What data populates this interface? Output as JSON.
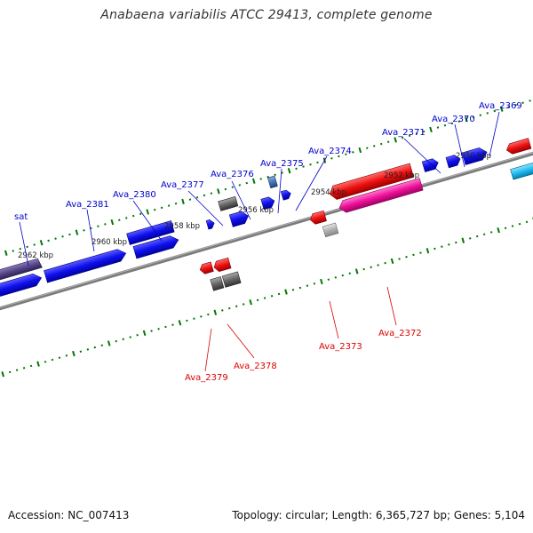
{
  "title": "Anabaena variabilis ATCC 29413, complete genome",
  "footer": {
    "accession": "Accession: NC_007413",
    "summary": "Topology: circular; Length: 6,365,727 bp; Genes: 5,104"
  },
  "scale_labels": [
    "2962 kbp",
    "2960 kbp",
    "2958 kbp",
    "2956 kbp",
    "2954 kbp",
    "2952 kbp",
    "2950 kbp"
  ],
  "gene_labels": {
    "forward": [
      "sat",
      "Ava_2381",
      "Ava_2380",
      "Ava_2377",
      "Ava_2376",
      "Ava_2375",
      "Ava_2374",
      "Ava_2371",
      "Ava_2370",
      "Ava_2369"
    ],
    "reverse": [
      "Ava_2379",
      "Ava_2378",
      "Ava_2373",
      "Ava_2372"
    ]
  },
  "colors": {
    "forward_label": "#0000cc",
    "reverse_label": "#dd0000",
    "backbone": "#808080",
    "tick": "#007700",
    "forward_gene": "#1010ee",
    "reverse_gene": "#ee1010",
    "pink_gene": "#ee1199",
    "gray_gene": "#666666",
    "light_gray_gene": "#aaaaaa",
    "purple_gene": "#554488",
    "cyan_gene": "#22bbee",
    "steel_gene": "#4477bb"
  }
}
